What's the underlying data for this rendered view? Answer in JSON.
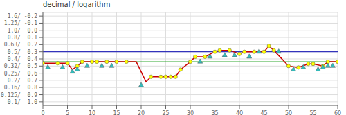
{
  "chart_data": {
    "type": "line",
    "title": "decimal / logarithm",
    "xlim": [
      0,
      60
    ],
    "xticks": [
      0,
      5,
      10,
      15,
      20,
      25,
      30,
      35,
      40,
      45,
      50,
      55,
      60
    ],
    "ylim": [
      -0.25,
      1.05
    ],
    "yticks": [
      {
        "value": -0.2,
        "label": "1.6/ -0.2"
      },
      {
        "value": -0.1,
        "label": "1.25/ -0.1"
      },
      {
        "value": 0.0,
        "label": "1.0/  0.0"
      },
      {
        "value": 0.1,
        "label": "0.8/  0.1"
      },
      {
        "value": 0.2,
        "label": "0.63/  0.2"
      },
      {
        "value": 0.3,
        "label": "0.5/  0.3"
      },
      {
        "value": 0.4,
        "label": "0.4/  0.4"
      },
      {
        "value": 0.5,
        "label": "0.32/  0.5"
      },
      {
        "value": 0.6,
        "label": "0.25/  0.6"
      },
      {
        "value": 0.7,
        "label": "0.2/  0.7"
      },
      {
        "value": 0.8,
        "label": "0.16/  0.8"
      },
      {
        "value": 0.9,
        "label": "0.125/  0.9"
      },
      {
        "value": 1.0,
        "label": "0.1/  1.0"
      }
    ],
    "grid": true,
    "series": [
      {
        "type": "hline",
        "color": "#3333bb",
        "values": [
          0.3
        ]
      },
      {
        "type": "hline",
        "color": "#33aa33",
        "values": [
          0.44
        ]
      },
      {
        "type": "line",
        "color": "#cc0000",
        "marker": "none",
        "x": [
          0,
          1,
          3,
          5,
          6,
          7,
          8,
          10,
          11,
          13,
          15,
          17,
          19,
          21,
          22,
          24,
          25,
          26,
          27,
          28,
          30,
          31,
          33,
          35,
          36,
          38,
          40,
          41,
          43,
          45,
          46,
          47,
          50,
          52,
          54,
          55,
          57,
          58,
          60
        ],
        "values": [
          0.46,
          0.46,
          0.46,
          0.46,
          0.55,
          0.5,
          0.44,
          0.44,
          0.44,
          0.44,
          0.44,
          0.44,
          0.44,
          0.72,
          0.65,
          0.65,
          0.65,
          0.65,
          0.65,
          0.55,
          0.44,
          0.37,
          0.37,
          0.3,
          0.28,
          0.28,
          0.33,
          0.3,
          0.3,
          0.3,
          0.22,
          0.28,
          0.5,
          0.52,
          0.47,
          0.47,
          0.5,
          0.44,
          0.44
        ]
      },
      {
        "type": "scatter",
        "color": "#ffff00",
        "marker": "circle",
        "x": [
          0,
          3,
          5,
          7,
          8,
          10,
          11,
          13,
          15,
          17,
          22,
          24,
          25,
          26,
          27,
          28,
          30,
          31,
          33,
          35,
          36,
          38,
          40,
          41,
          43,
          45,
          46,
          47,
          50,
          52,
          54,
          55,
          57,
          58,
          60
        ],
        "values": [
          0.46,
          0.46,
          0.46,
          0.5,
          0.44,
          0.44,
          0.44,
          0.44,
          0.44,
          0.44,
          0.65,
          0.65,
          0.65,
          0.65,
          0.65,
          0.55,
          0.44,
          0.37,
          0.37,
          0.3,
          0.28,
          0.28,
          0.33,
          0.3,
          0.3,
          0.3,
          0.22,
          0.28,
          0.5,
          0.52,
          0.47,
          0.47,
          0.5,
          0.44,
          0.44
        ]
      },
      {
        "type": "scatter",
        "color": "#33bbbb",
        "marker": "triangle",
        "x": [
          1,
          4,
          6,
          7,
          9,
          12,
          14,
          20,
          32,
          34,
          37,
          39,
          42,
          44,
          48,
          51,
          53,
          56,
          57,
          58,
          59
        ],
        "values": [
          0.52,
          0.52,
          0.58,
          0.55,
          0.5,
          0.5,
          0.5,
          0.77,
          0.44,
          0.37,
          0.35,
          0.35,
          0.37,
          0.3,
          0.3,
          0.55,
          0.52,
          0.55,
          0.52,
          0.5,
          0.5
        ]
      }
    ]
  }
}
